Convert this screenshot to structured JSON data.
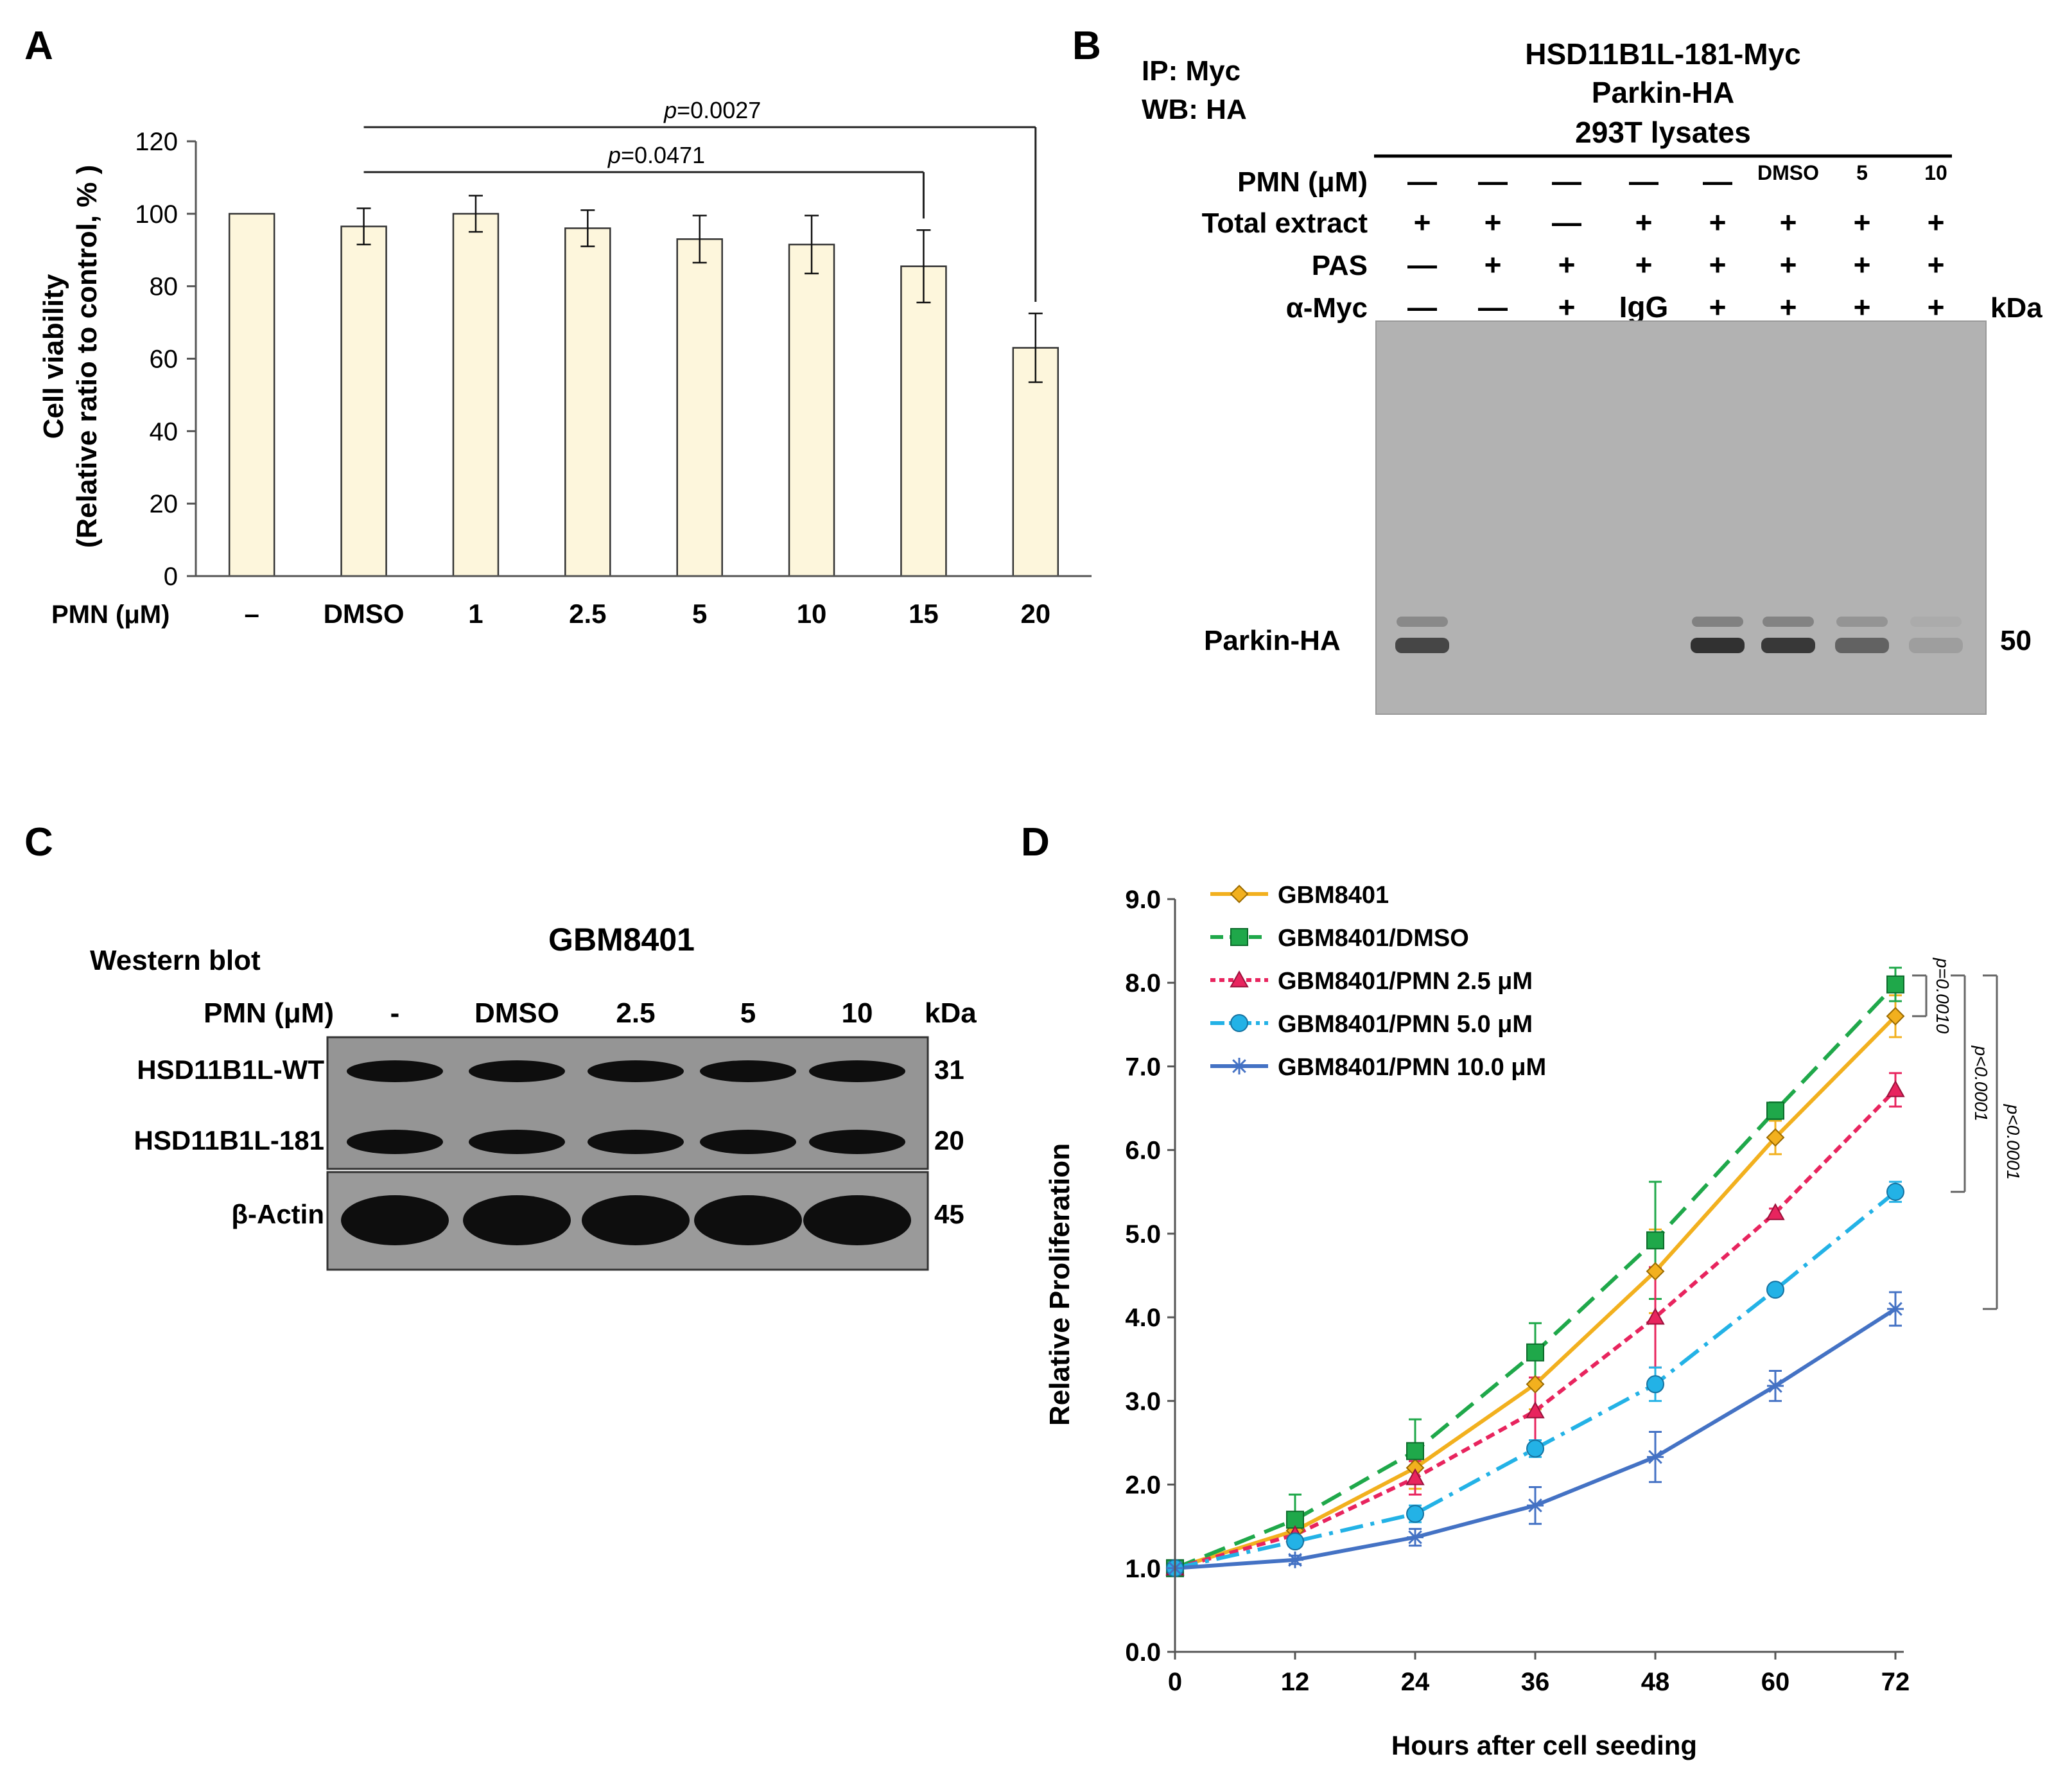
{
  "panels": {
    "A": {
      "letter": "A",
      "chart_data": {
        "type": "bar",
        "ylabel_line1": "Cell viability",
        "ylabel_line2": "(Relative ratio to control, % )",
        "xlabel": "PMN (μM)",
        "categories": [
          "–",
          "DMSO",
          "1",
          "2.5",
          "5",
          "10",
          "15",
          "20"
        ],
        "values": [
          100,
          96.5,
          100,
          96,
          93,
          91.5,
          85.5,
          63
        ],
        "errors": [
          0,
          5,
          5,
          5,
          6.5,
          8,
          10,
          9.5
        ],
        "ylim": [
          0,
          120
        ],
        "yticks": [
          "0",
          "20",
          "40",
          "60",
          "80",
          "100",
          "120"
        ],
        "bar_color": "#fdf6dc",
        "annotations": [
          {
            "label_prefix": "p",
            "label_value": "=0.0471",
            "from": "DMSO",
            "to": "15"
          },
          {
            "label_prefix": "p",
            "label_value": "=0.0027",
            "from": "DMSO",
            "to": "20"
          }
        ]
      }
    },
    "B": {
      "letter": "B",
      "ip_label": "IP: Myc",
      "wb_label": "WB: HA",
      "header_lines": [
        "HSD11B1L-181-Myc",
        "Parkin-HA",
        "293T lysates"
      ],
      "row_labels": [
        "PMN (μM)",
        "Total extract",
        "PAS",
        "α-Myc"
      ],
      "rows": [
        [
          "—",
          "—",
          "—",
          "—",
          "—",
          "DMSO",
          "5",
          "10"
        ],
        [
          "+",
          "+",
          "—",
          "+",
          "+",
          "+",
          "+",
          "+"
        ],
        [
          "—",
          "+",
          "+",
          "+",
          "+",
          "+",
          "+",
          "+"
        ],
        [
          "—",
          "—",
          "+",
          "IgG",
          "+",
          "+",
          "+",
          "+"
        ]
      ],
      "kda_label": "kDa",
      "band_label": "Parkin-HA",
      "band_kda": "50",
      "band_intensity": [
        0.75,
        0,
        0,
        0,
        0.9,
        0.85,
        0.55,
        0.12
      ]
    },
    "C": {
      "letter": "C",
      "title": "GBM8401",
      "method": "Western blot",
      "pmn_label": "PMN (μM)",
      "lanes": [
        "-",
        "DMSO",
        "2.5",
        "5",
        "10"
      ],
      "kda_label": "kDa",
      "blots": [
        {
          "label": "HSD11B1L-WT",
          "kda": "31"
        },
        {
          "label": "HSD11B1L-181",
          "kda": "20"
        },
        {
          "label": "β-Actin",
          "kda": "45"
        }
      ]
    },
    "D": {
      "letter": "D",
      "chart_data": {
        "type": "line",
        "xlabel": "Hours after cell seeding",
        "ylabel": "Relative Proliferation",
        "x": [
          0,
          12,
          24,
          36,
          48,
          60,
          72
        ],
        "xticks": [
          "0",
          "12",
          "24",
          "36",
          "48",
          "60",
          "72"
        ],
        "yticks": [
          "0.0",
          "1.0",
          "2.0",
          "3.0",
          "4.0",
          "5.0",
          "6.0",
          "7.0",
          "8.0",
          "9.0"
        ],
        "xlim": [
          0,
          72
        ],
        "ylim": [
          0,
          9
        ],
        "legend": "top-left",
        "series": [
          {
            "name": "GBM8401",
            "color": "#f2b01e",
            "dash": "",
            "marker": "diamond",
            "values": [
              1.0,
              1.45,
              2.2,
              3.2,
              4.55,
              6.15,
              7.6
            ],
            "errors": [
              0,
              0.1,
              0.25,
              0.3,
              0.5,
              0.2,
              0.25
            ]
          },
          {
            "name": "GBM8401/DMSO",
            "color": "#1fa84a",
            "dash": "34,16",
            "marker": "square",
            "values": [
              1.0,
              1.58,
              2.4,
              3.58,
              4.92,
              6.47,
              7.98
            ],
            "errors": [
              0,
              0.3,
              0.38,
              0.35,
              0.7,
              0.1,
              0.2
            ]
          },
          {
            "name": "GBM8401/PMN 2.5 μM",
            "color": "#e8245e",
            "dash": "14,8",
            "marker": "triangle",
            "values": [
              1.0,
              1.4,
              2.08,
              2.88,
              4.0,
              5.25,
              6.72
            ],
            "errors": [
              0,
              0.1,
              0.2,
              0.4,
              0.6,
              0.05,
              0.2
            ]
          },
          {
            "name": "GBM8401/PMN 5.0 μM",
            "color": "#23b2e6",
            "dash": "36,12,6,12",
            "marker": "circle",
            "values": [
              1.0,
              1.32,
              1.65,
              2.43,
              3.2,
              4.33,
              5.5
            ],
            "errors": [
              0,
              0.05,
              0.1,
              0.1,
              0.2,
              0.05,
              0.12
            ]
          },
          {
            "name": "GBM8401/PMN 10.0 μM",
            "color": "#4472c4",
            "dash": "",
            "marker": "star",
            "values": [
              1.0,
              1.1,
              1.37,
              1.75,
              2.33,
              3.18,
              4.1
            ],
            "errors": [
              0,
              0.05,
              0.1,
              0.22,
              0.3,
              0.18,
              0.2
            ]
          }
        ],
        "brackets": [
          {
            "label": "p=0.0010",
            "from": 7.98,
            "to": 7.6
          },
          {
            "label": "p<0.0001",
            "from": 7.98,
            "to": 5.5
          },
          {
            "label": "p<0.0001",
            "from": 7.98,
            "to": 4.1
          }
        ]
      }
    }
  }
}
